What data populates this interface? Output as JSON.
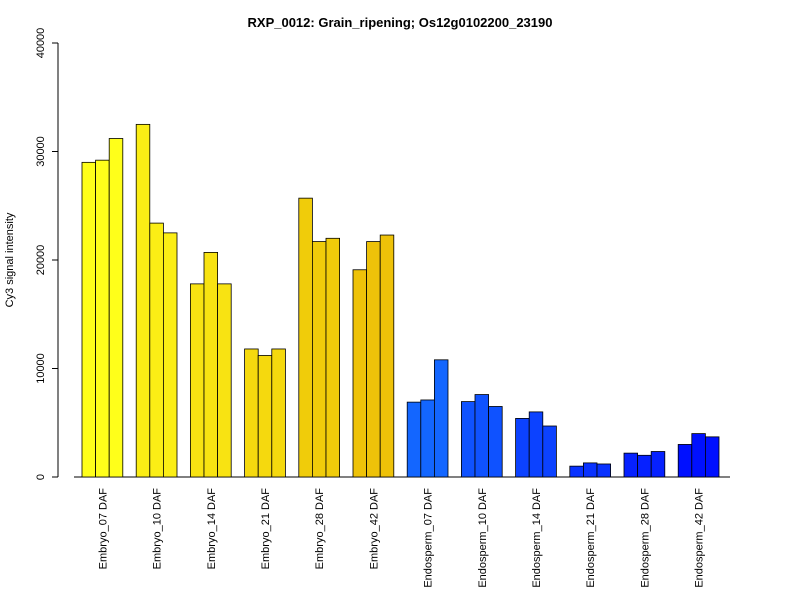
{
  "chart_data": {
    "type": "bar",
    "title": "RXP_0012: Grain_ripening; Os12g0102200_23190",
    "xlabel": "",
    "ylabel": "Cy3 signal intensity",
    "ylim": [
      0,
      40000
    ],
    "yticks": [
      0,
      10000,
      20000,
      30000,
      40000
    ],
    "grid": false,
    "categories": [
      "Embryo_07 DAF",
      "Embryo_10 DAF",
      "Embryo_14 DAF",
      "Embryo_21 DAF",
      "Embryo_28 DAF",
      "Embryo_42 DAF",
      "Endosperm_07 DAF",
      "Endosperm_10 DAF",
      "Endosperm_14 DAF",
      "Endosperm_21 DAF",
      "Endosperm_28 DAF",
      "Endosperm_42 DAF"
    ],
    "replicates_per_category": 3,
    "values": [
      [
        29000,
        29200,
        31200
      ],
      [
        32500,
        23400,
        22500
      ],
      [
        17800,
        20700,
        17800
      ],
      [
        11800,
        11200,
        11800
      ],
      [
        25700,
        21700,
        22000
      ],
      [
        19100,
        21700,
        22300
      ],
      [
        6900,
        7100,
        10800
      ],
      [
        6950,
        7600,
        6500
      ],
      [
        5400,
        6000,
        4700
      ],
      [
        1000,
        1300,
        1200
      ],
      [
        2200,
        2000,
        2350
      ],
      [
        3000,
        4000,
        3700
      ]
    ],
    "colors": [
      "#ffff1a",
      "#fbee15",
      "#f8e312",
      "#f5d90e",
      "#f0cc0a",
      "#eec209",
      "#1366ff",
      "#0f52ff",
      "#0c42ff",
      "#0932ff",
      "#0621ff",
      "#0010ff"
    ]
  }
}
